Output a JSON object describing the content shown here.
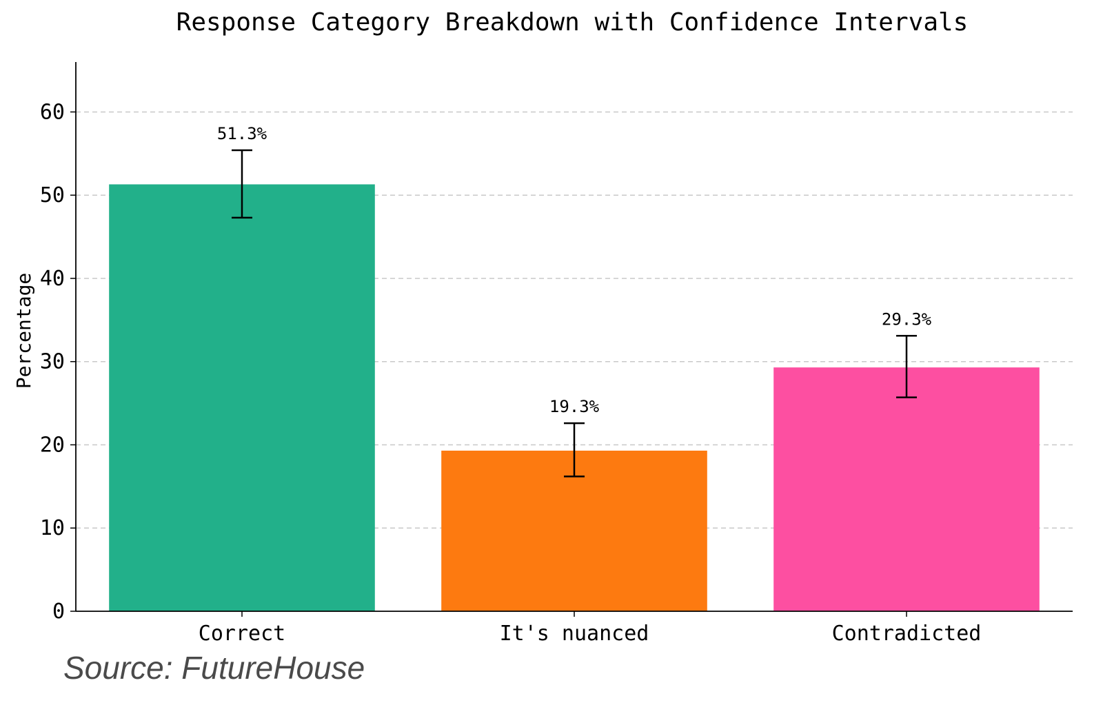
{
  "chart_data": {
    "type": "bar",
    "title": "Response Category Breakdown with Confidence Intervals",
    "xlabel": "",
    "ylabel": "Percentage",
    "categories": [
      "Correct",
      "It's nuanced",
      "Contradicted"
    ],
    "values": [
      51.3,
      19.3,
      29.3
    ],
    "value_labels": [
      "51.3%",
      "19.3%",
      "29.3%"
    ],
    "error_low": [
      47.3,
      16.2,
      25.7
    ],
    "error_high": [
      55.4,
      22.6,
      33.1
    ],
    "colors": [
      "#22b08a",
      "#fd7a10",
      "#fd4fa1"
    ],
    "ylim": [
      0,
      66
    ],
    "yticks": [
      0,
      10,
      20,
      30,
      40,
      50,
      60
    ],
    "grid": "y-dashed",
    "legend": "none"
  },
  "source_text": "Source: FutureHouse"
}
